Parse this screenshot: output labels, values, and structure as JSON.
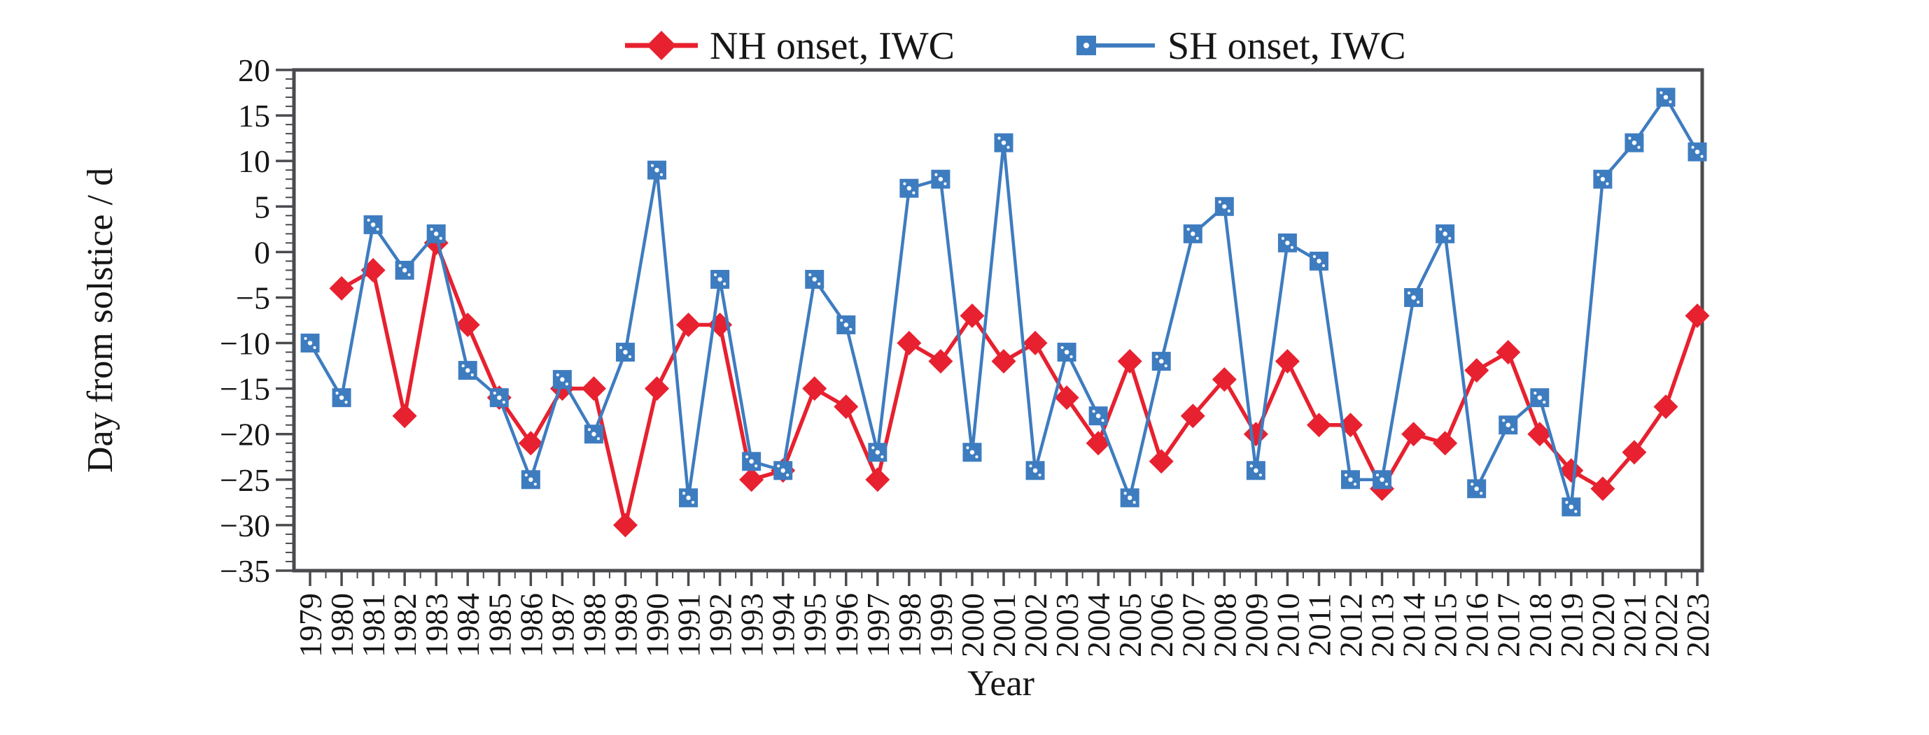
{
  "figure": {
    "legend": [
      {
        "label": "NH onset, IWC",
        "marker": "diamond"
      },
      {
        "label": "SH onset, IWC",
        "marker": "square"
      }
    ],
    "y_axis": {
      "title": "Day from solstice / d",
      "min": -35,
      "max": 20,
      "major_step": 5,
      "minor_step": 1,
      "tick_labels": [
        "20",
        "15",
        "10",
        "5",
        "0",
        "−5",
        "−10",
        "−15",
        "−20",
        "−25",
        "−30",
        "−35"
      ]
    },
    "x_axis": {
      "title": "Year",
      "first": 1979,
      "last": 2023
    },
    "colors": {
      "nh": "#e7212f",
      "sh": "#3e7cc0",
      "axis": "#4a4a4f",
      "text": "#161618"
    }
  },
  "chart_data": {
    "type": "line",
    "title": "",
    "xlabel": "Year",
    "ylabel": "Day from solstice / d",
    "ylim": [
      -35,
      20
    ],
    "xlim": [
      1979,
      2023
    ],
    "grid": false,
    "legend_position": "top-center",
    "x": [
      1979,
      1980,
      1981,
      1982,
      1983,
      1984,
      1985,
      1986,
      1987,
      1988,
      1989,
      1990,
      1991,
      1992,
      1993,
      1994,
      1995,
      1996,
      1997,
      1998,
      1999,
      2000,
      2001,
      2002,
      2003,
      2004,
      2005,
      2006,
      2007,
      2008,
      2009,
      2010,
      2011,
      2012,
      2013,
      2014,
      2015,
      2016,
      2017,
      2018,
      2019,
      2020,
      2021,
      2022,
      2023
    ],
    "series": [
      {
        "name": "NH onset, IWC",
        "marker": "diamond",
        "color": "#e7212f",
        "values": [
          null,
          -4,
          -2,
          -18,
          1,
          -8,
          -16,
          -21,
          -15,
          -15,
          -30,
          -15,
          -8,
          -8,
          -25,
          -24,
          -15,
          -17,
          -25,
          -10,
          -12,
          -7,
          -12,
          -10,
          -16,
          -21,
          -12,
          -23,
          -18,
          -14,
          -20,
          -12,
          -19,
          -19,
          -26,
          -20,
          -21,
          -13,
          -11,
          -20,
          -24,
          -26,
          -22,
          -17,
          -7
        ]
      },
      {
        "name": "SH onset, IWC",
        "marker": "square",
        "color": "#3e7cc0",
        "values": [
          -10,
          -16,
          3,
          -2,
          2,
          -13,
          -16,
          -25,
          -14,
          -20,
          -11,
          9,
          -27,
          -3,
          -23,
          -24,
          -3,
          -8,
          -22,
          7,
          8,
          -22,
          12,
          -24,
          -11,
          -18,
          -27,
          -12,
          2,
          5,
          -24,
          1,
          -1,
          -25,
          -25,
          -5,
          2,
          -26,
          -19,
          -16,
          -28,
          8,
          12,
          17,
          11
        ]
      }
    ]
  }
}
